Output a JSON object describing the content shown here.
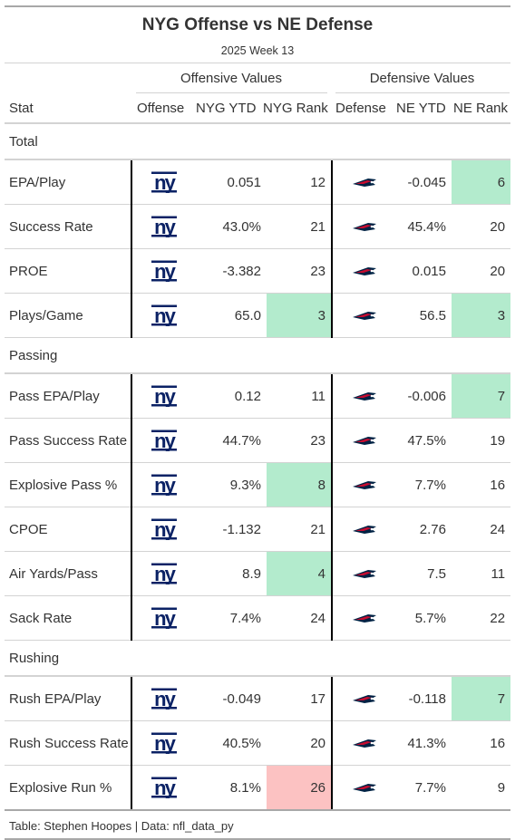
{
  "header": {
    "title": "NYG Offense vs NE Defense",
    "subtitle": "2025 Week 13",
    "offense_spanner": "Offensive Values",
    "defense_spanner": "Defensive Values"
  },
  "columns": {
    "stat": "Stat",
    "offense": "Offense",
    "off_ytd": "NYG YTD",
    "off_rank": "NYG Rank",
    "defense": "Defense",
    "def_ytd": "NE YTD",
    "def_rank": "NE Rank"
  },
  "logos": {
    "offense_icon": "nyg-logo-icon",
    "defense_icon": "patriots-logo-icon",
    "nyg_color": "#0b2265",
    "ne_red": "#c60c30",
    "ne_navy": "#002244"
  },
  "colors": {
    "good": "#b3ebcd",
    "bad": "#fcc2c2"
  },
  "groups": [
    {
      "name": "Total",
      "rows": [
        {
          "stat": "EPA/Play",
          "off_ytd": "0.051",
          "off_rank": "12",
          "def_ytd": "-0.045",
          "def_rank": "6"
        },
        {
          "stat": "Success Rate",
          "off_ytd": "43.0%",
          "off_rank": "21",
          "def_ytd": "45.4%",
          "def_rank": "20"
        },
        {
          "stat": "PROE",
          "off_ytd": "-3.382",
          "off_rank": "23",
          "def_ytd": "0.015",
          "def_rank": "20"
        },
        {
          "stat": "Plays/Game",
          "off_ytd": "65.0",
          "off_rank": "3",
          "def_ytd": "56.5",
          "def_rank": "3"
        }
      ]
    },
    {
      "name": "Passing",
      "rows": [
        {
          "stat": "Pass EPA/Play",
          "off_ytd": "0.12",
          "off_rank": "11",
          "def_ytd": "-0.006",
          "def_rank": "7"
        },
        {
          "stat": "Pass Success Rate",
          "off_ytd": "44.7%",
          "off_rank": "23",
          "def_ytd": "47.5%",
          "def_rank": "19"
        },
        {
          "stat": "Explosive Pass %",
          "off_ytd": "9.3%",
          "off_rank": "8",
          "def_ytd": "7.7%",
          "def_rank": "16"
        },
        {
          "stat": "CPOE",
          "off_ytd": "-1.132",
          "off_rank": "21",
          "def_ytd": "2.76",
          "def_rank": "24"
        },
        {
          "stat": "Air Yards/Pass",
          "off_ytd": "8.9",
          "off_rank": "4",
          "def_ytd": "7.5",
          "def_rank": "11"
        },
        {
          "stat": "Sack Rate",
          "off_ytd": "7.4%",
          "off_rank": "24",
          "def_ytd": "5.7%",
          "def_rank": "22"
        }
      ]
    },
    {
      "name": "Rushing",
      "rows": [
        {
          "stat": "Rush EPA/Play",
          "off_ytd": "-0.049",
          "off_rank": "17",
          "def_ytd": "-0.118",
          "def_rank": "7"
        },
        {
          "stat": "Rush Success Rate",
          "off_ytd": "40.5%",
          "off_rank": "20",
          "def_ytd": "41.3%",
          "def_rank": "16"
        },
        {
          "stat": "Explosive Run %",
          "off_ytd": "8.1%",
          "off_rank": "26",
          "def_ytd": "7.7%",
          "def_rank": "9"
        }
      ]
    }
  ],
  "highlights": {
    "off_rank_good": [
      "Plays/Game",
      "Explosive Pass %",
      "Air Yards/Pass"
    ],
    "off_rank_bad": [
      "Explosive Run %"
    ],
    "def_rank_good": [
      "EPA/Play",
      "Plays/Game",
      "Pass EPA/Play",
      "Rush EPA/Play"
    ]
  },
  "footer": {
    "source": "Table: Stephen Hoopes | Data: nfl_data_py"
  }
}
